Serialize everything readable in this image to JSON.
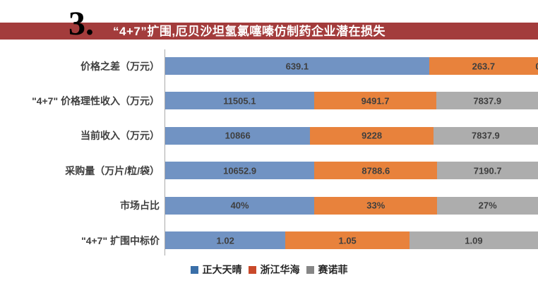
{
  "header": {
    "number": "3.",
    "title": "“4+7”扩围,厄贝沙坦氢氯噻嗪仿制药企业潜在损失",
    "banner_color": "#A33C3C"
  },
  "chart_data": {
    "type": "bar",
    "subtype": "horizontal-100%-stacked",
    "title": "“4+7”扩围,厄贝沙坦氢氯噻嗪仿制药企业潜在损失",
    "categories": [
      "价格之差（万元）",
      "\"4+7\" 价格理性收入（万元）",
      "当前收入（万元）",
      "采购量（万片/粒/袋）",
      "市场占比",
      "\"4+7\" 扩围中标价"
    ],
    "series": [
      {
        "name": "正大天晴",
        "bar_color": "#7193C3",
        "legend_color": "#3A6FA8",
        "values": [
          639.1,
          11505.1,
          10866,
          10652.9,
          40,
          1.02
        ],
        "labels": [
          "639.1",
          "11505.1",
          "10866",
          "10652.9",
          "40%",
          "1.02"
        ]
      },
      {
        "name": "浙江华海",
        "bar_color": "#E8823C",
        "legend_color": "#C9492A",
        "values": [
          263.7,
          9491.7,
          9228,
          8788.6,
          33,
          1.05
        ],
        "labels": [
          "263.7",
          "9491.7",
          "9228",
          "8788.6",
          "33%",
          "1.05"
        ]
      },
      {
        "name": "赛诺菲",
        "bar_color": "#ADADAD",
        "legend_color": "#868686",
        "values": [
          0,
          7837.9,
          7837.9,
          7190.7,
          27,
          1.09
        ],
        "labels": [
          "0",
          "7837.9",
          "7837.9",
          "7190.7",
          "27%",
          "1.09"
        ]
      }
    ],
    "value_label_color": "#3F3F3F",
    "axis_line_color": "#A9A9A9",
    "legend_position": "bottom-center",
    "grid": false,
    "xlim_percent": [
      0,
      100
    ]
  }
}
